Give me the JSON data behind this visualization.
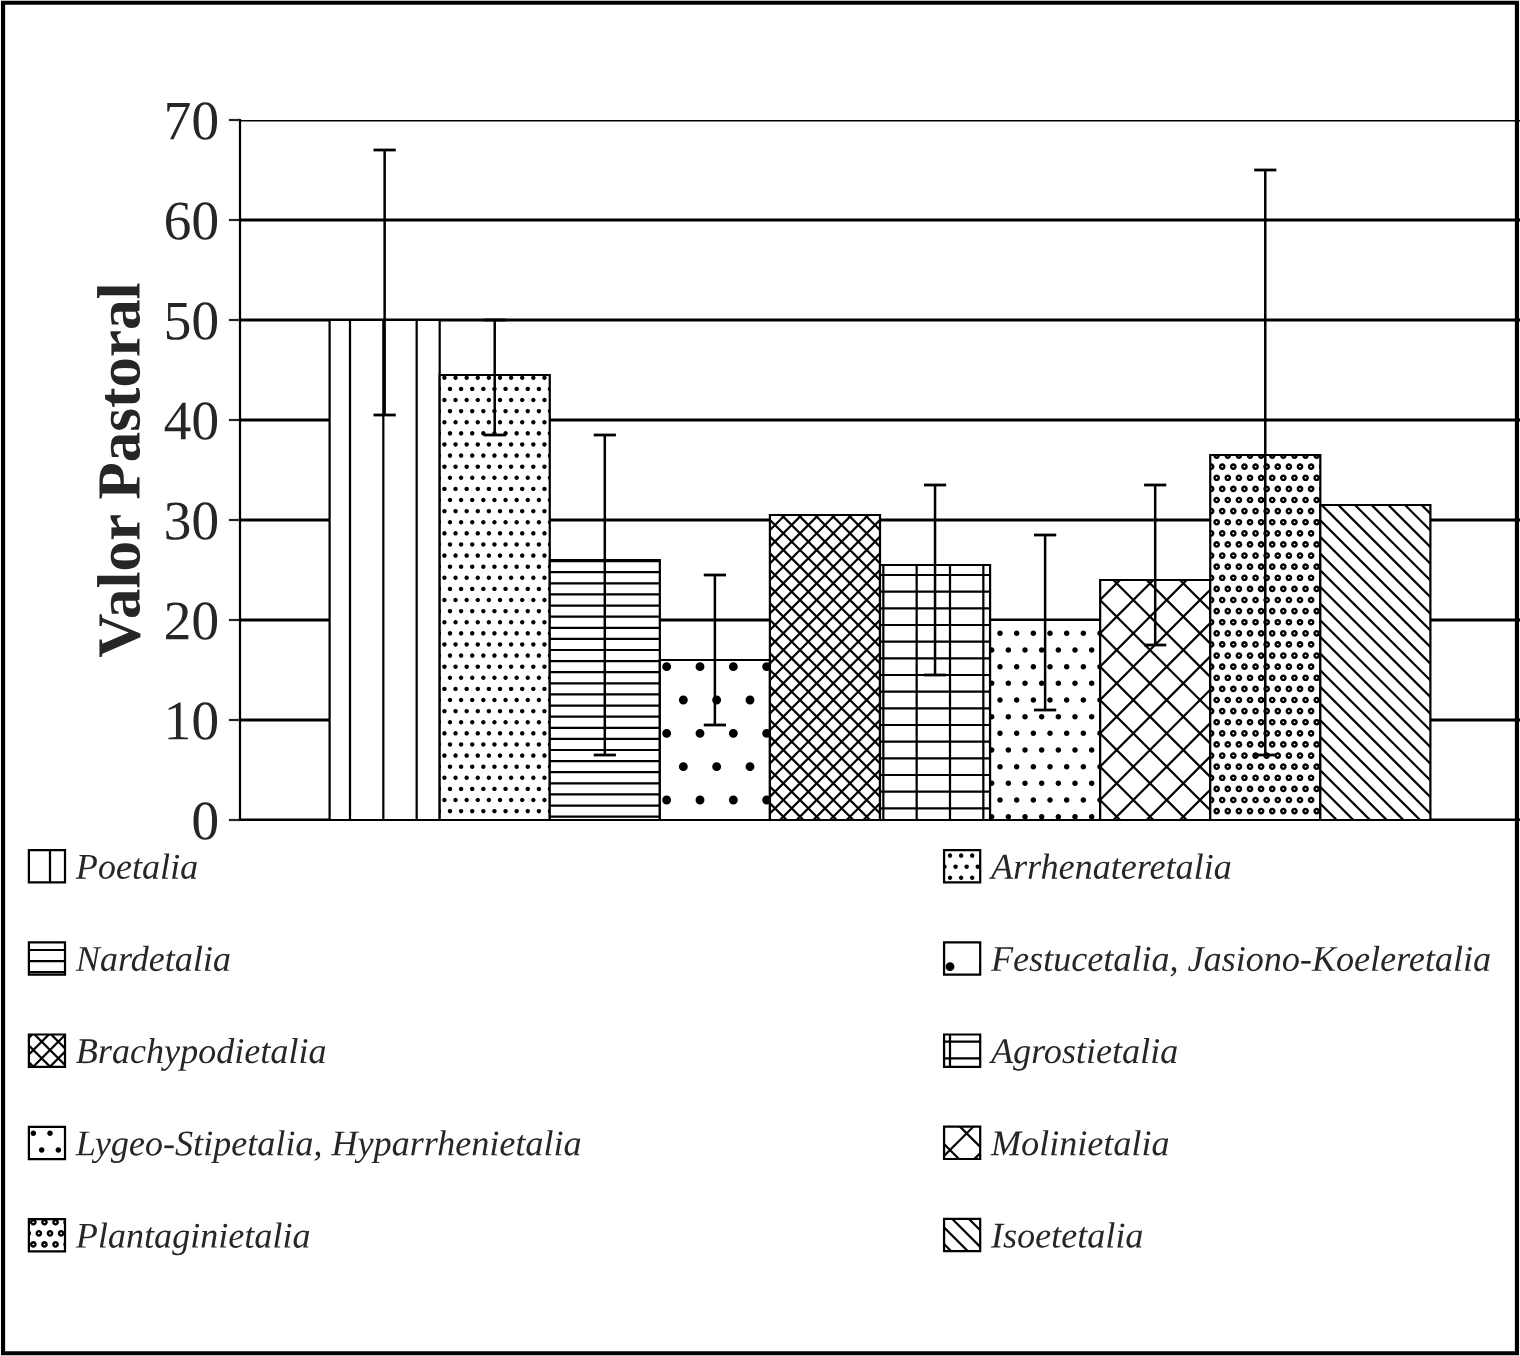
{
  "chart_data": {
    "type": "bar",
    "ylabel": "Valor Pastoral",
    "categories": [
      null
    ],
    "series": [
      {
        "name": "Poetalia",
        "color": "#000000",
        "values": [
          50
        ],
        "errors": [
          [
            40.5,
            67
          ]
        ]
      },
      {
        "name": "Arrhenateretalia",
        "color": "#000000",
        "values": [
          44.5
        ],
        "errors": [
          [
            38.5,
            50
          ]
        ]
      },
      {
        "name": "Nardetalia",
        "color": "#000000",
        "values": [
          26
        ],
        "errors": [
          [
            6.5,
            38.5
          ]
        ]
      },
      {
        "name": "Festucetalia, Jasiono-Koeleretalia",
        "color": "#000000",
        "values": [
          16
        ],
        "errors": [
          [
            9.5,
            24.5
          ]
        ]
      },
      {
        "name": "Brachypodietalia",
        "color": "#000000",
        "values": [
          30.5
        ],
        "errors": [
          null
        ]
      },
      {
        "name": "Agrostietalia",
        "color": "#000000",
        "values": [
          25.5
        ],
        "errors": [
          [
            14.5,
            33.5
          ]
        ]
      },
      {
        "name": "Lygeo-Stipetalia, Hyparrhenietalia",
        "color": "#000000",
        "values": [
          20
        ],
        "errors": [
          [
            11,
            28.5
          ]
        ]
      },
      {
        "name": "Molinietalia",
        "color": "#000000",
        "values": [
          24
        ],
        "errors": [
          [
            17.5,
            33.5
          ]
        ]
      },
      {
        "name": "Plantaginietalia",
        "color": "#000000",
        "values": [
          36.5
        ],
        "errors": [
          [
            6.5,
            65
          ]
        ]
      },
      {
        "name": "Isoetetalia",
        "color": "#000000",
        "values": [
          31.5
        ],
        "errors": [
          null
        ]
      }
    ],
    "ylim": [
      0,
      70
    ],
    "yticks": [
      0,
      10,
      20,
      30,
      40,
      50,
      60,
      70
    ],
    "grid": "y",
    "legend": "bottom",
    "tick_labels": "y"
  }
}
